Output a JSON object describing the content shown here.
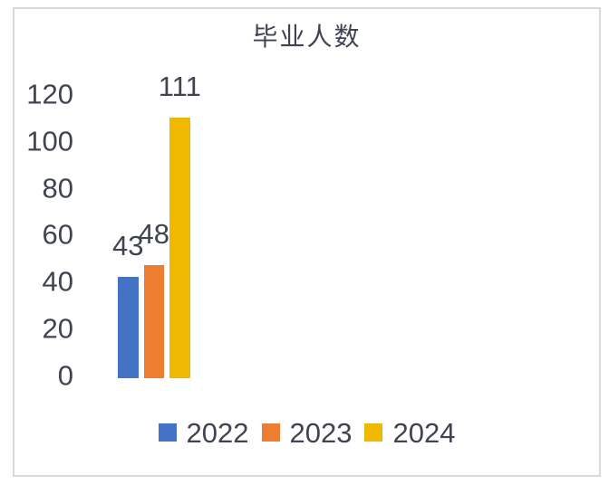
{
  "chart_data": {
    "type": "bar",
    "title": "毕业人数",
    "categories": [
      ""
    ],
    "series": [
      {
        "name": "2022",
        "values": [
          43
        ],
        "color": "#4472C4"
      },
      {
        "name": "2023",
        "values": [
          48
        ],
        "color": "#ED7D31"
      },
      {
        "name": "2024",
        "values": [
          111
        ],
        "color": "#F0B800"
      }
    ],
    "data_labels": [
      "43",
      "48",
      "111"
    ],
    "yticks": [
      0,
      20,
      40,
      60,
      80,
      100,
      120
    ],
    "ylim": [
      0,
      120
    ],
    "xlabel": "",
    "ylabel": "",
    "grid": false,
    "legend_position": "bottom",
    "text_color": "#3F4450",
    "frame_border_color": "#D9D9D9",
    "background_color": "#FFFFFF"
  }
}
